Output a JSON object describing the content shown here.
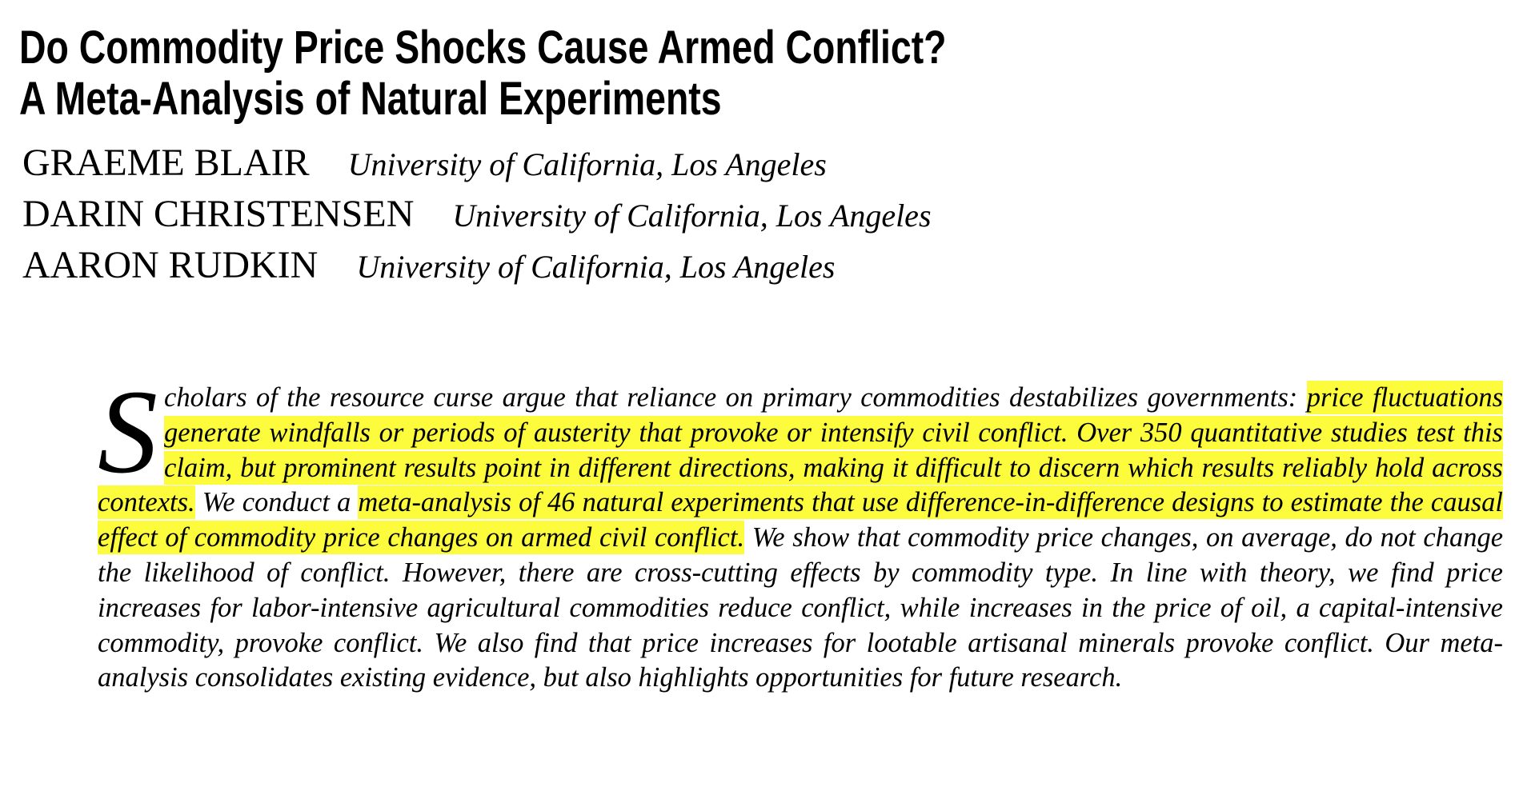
{
  "paper": {
    "title_line1": "Do Commodity Price Shocks Cause Armed Conflict?",
    "title_line2": "A Meta-Analysis of Natural Experiments",
    "authors": [
      {
        "name": "GRAEME BLAIR",
        "affiliation": "University of California, Los Angeles"
      },
      {
        "name": "DARIN CHRISTENSEN",
        "affiliation": "University of California, Los Angeles"
      },
      {
        "name": "AARON RUDKIN",
        "affiliation": "University of California, Los Angeles"
      }
    ],
    "abstract": {
      "dropcap": "S",
      "seg1": "cholars of the resource curse argue that reliance on primary commodities destabilizes governments: ",
      "seg2_highlighted": "price fluctuations generate windfalls or periods of austerity that provoke or intensify civil conflict. Over 350 quantitative studies test this claim, but prominent results point in different directions, making it difficult to discern which results reliably hold across contexts.",
      "seg3": " We conduct a ",
      "seg4_highlighted": "meta-analysis of 46 natural experiments that use difference-in-difference designs to estimate the causal effect of commodity price changes on armed civil conflict.",
      "seg5": " We show that commodity price changes, on average, do not change the likelihood of conflict. However, there are cross-cutting effects by commodity type. In line with theory, we find price increases for labor-intensive agricultural commodities reduce conflict, while increases in the price of oil, a capital-intensive commodity, provoke conflict. We also find that price increases for lootable artisanal minerals provoke conflict. Our meta-analysis consolidates existing evidence, but also highlights opportunities for future research."
    }
  },
  "colors": {
    "highlight": "#fcfc3d",
    "text": "#000000",
    "background": "#ffffff"
  }
}
